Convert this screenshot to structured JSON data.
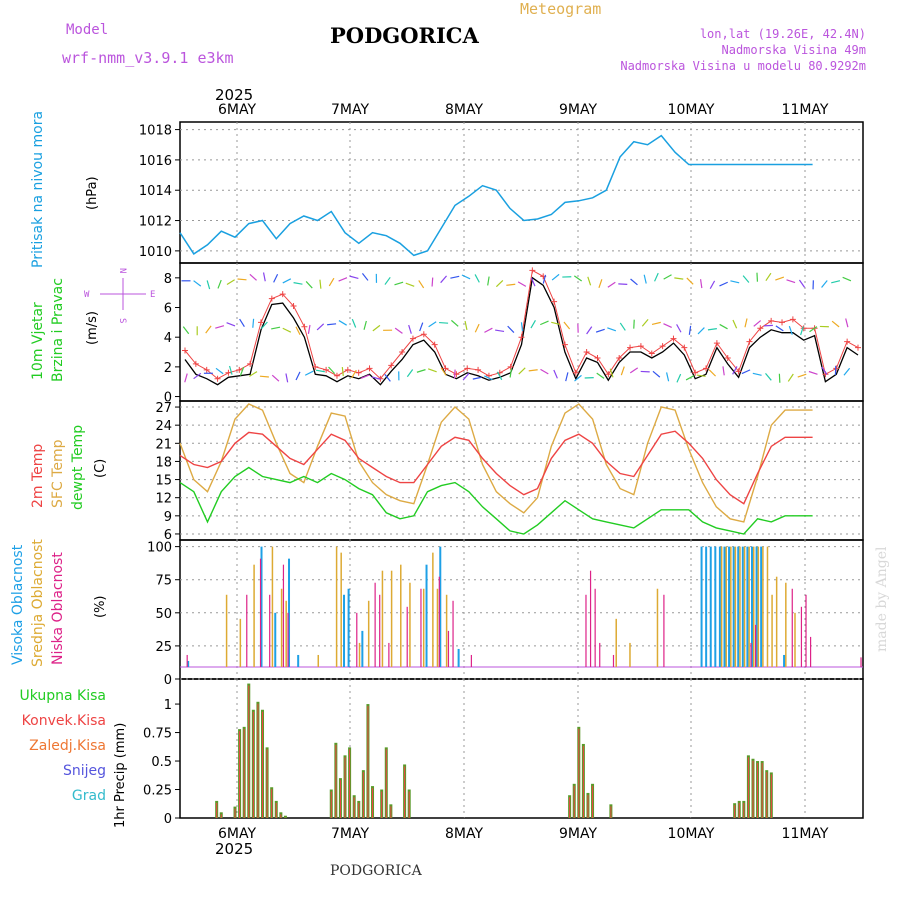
{
  "header": {
    "model_label": "Model",
    "model_name": "wrf-nmm_v3.9.1 e3km",
    "city": "PODGORICA",
    "meteogram": "Meteogram",
    "lonlat": "lon,lat (19.26E, 42.4N)",
    "elevation": "Nadmorska Visina 49m",
    "model_elevation": "Nadmorska Visina u modelu 80.9292m",
    "footer_city": "PODGORICA",
    "watermark": "made by Angel"
  },
  "colors": {
    "pressure": "#1aa0e0",
    "wind_label": "#22cc22",
    "temp2m": "#ee4444",
    "sfc": "#ddaa44",
    "dewpt": "#22cc22",
    "high_cloud": "#1ea0e6",
    "mid_cloud": "#ddaa33",
    "low_cloud": "#dd2288",
    "precip": "#5a9a2a",
    "label_purple": "#bb55dd"
  },
  "chart_data": [
    {
      "type": "line",
      "name": "pressure",
      "title_label": "Pritisak na nivou mora",
      "unit_label": "(hPa)",
      "x_start_year_label": "2025",
      "x_top_labels": [
        "6MAY",
        "7MAY",
        "8MAY",
        "9MAY",
        "10MAY",
        "11MAY"
      ],
      "x": [
        0,
        3,
        6,
        9,
        12,
        15,
        18,
        21,
        24,
        27,
        30,
        33,
        36,
        39,
        42,
        45,
        48,
        51,
        54,
        57,
        60,
        63,
        66,
        69,
        72,
        75,
        78,
        81,
        84,
        87,
        90,
        93,
        96,
        99,
        102,
        105,
        108,
        111,
        114,
        117,
        120,
        123,
        126,
        129,
        132,
        135,
        138,
        141,
        144
      ],
      "x_unit": "hours from 6MAY 00UTC minus 11",
      "yticks": [
        1010,
        1012,
        1014,
        1016,
        1018
      ],
      "ylim": [
        1009.2,
        1018.5
      ],
      "values": [
        1011.2,
        1009.8,
        1010.4,
        1011.3,
        1010.9,
        1011.8,
        1012.0,
        1010.8,
        1011.8,
        1012.3,
        1012.0,
        1012.6,
        1011.2,
        1010.5,
        1011.2,
        1011.0,
        1010.5,
        1009.7,
        1010.0,
        1011.5,
        1013.0,
        1013.6,
        1014.3,
        1014.0,
        1012.8,
        1012.0,
        1012.1,
        1012.4,
        1013.2,
        1013.3,
        1013.5,
        1014.0,
        1016.2,
        1017.2,
        1017.0,
        1017.6,
        1016.5,
        1015.7,
        1015.7,
        1015.7,
        1015.7,
        1015.7,
        1015.7,
        1015.7,
        1015.7,
        1015.7,
        1015.7,
        1015.7,
        1015.7
      ]
    },
    {
      "type": "line",
      "name": "wind",
      "title_label_1": "10m Vjetar",
      "title_label_2": "Brzina i Pravac",
      "unit_label": "(m/s)",
      "compass_n": "N",
      "compass_e": "E",
      "compass_w": "W",
      "compass_s": "S",
      "yticks": [
        0,
        2,
        4,
        6,
        8
      ],
      "ylim": [
        -0.3,
        9.0
      ],
      "speed": [
        2.5,
        1.5,
        1.2,
        0.8,
        1.3,
        1.4,
        1.5,
        4.5,
        6.2,
        6.3,
        5.3,
        4.0,
        1.5,
        1.4,
        1.0,
        1.4,
        1.2,
        1.5,
        0.8,
        1.7,
        2.5,
        3.5,
        3.8,
        3.0,
        1.5,
        1.2,
        1.6,
        1.4,
        1.1,
        1.3,
        1.6,
        3.5,
        8.0,
        7.5,
        6.0,
        3.0,
        1.2,
        2.6,
        2.3,
        1.1,
        2.3,
        3.0,
        3.0,
        2.6,
        3.0,
        3.6,
        2.8,
        1.2,
        1.5,
        3.3,
        2.2,
        1.3,
        3.3,
        4.0,
        4.5,
        4.3,
        4.3,
        3.8,
        4.1,
        1.0,
        1.5,
        3.3,
        2.8
      ],
      "gust": [
        3.1,
        2.2,
        1.8,
        1.2,
        1.6,
        1.8,
        2.2,
        5.0,
        6.6,
        6.9,
        6.1,
        4.7,
        2.0,
        1.8,
        1.4,
        1.8,
        1.6,
        1.9,
        1.2,
        2.1,
        3.0,
        3.9,
        4.2,
        3.5,
        1.9,
        1.5,
        1.9,
        1.8,
        1.4,
        1.6,
        2.0,
        4.0,
        8.5,
        8.1,
        6.4,
        3.5,
        1.6,
        3.0,
        2.6,
        1.5,
        2.6,
        3.3,
        3.4,
        2.9,
        3.4,
        3.9,
        3.3,
        1.6,
        1.9,
        3.6,
        2.6,
        1.7,
        3.7,
        4.6,
        5.1,
        5.0,
        5.2,
        4.6,
        4.6,
        1.5,
        1.9,
        3.7,
        3.3
      ]
    },
    {
      "type": "line",
      "name": "temperature",
      "label_2m": "2m Temp",
      "label_sfc": "SFC Temp",
      "label_dew": "dewpt Temp",
      "unit_label": "(C)",
      "yticks": [
        6,
        9,
        12,
        15,
        18,
        21,
        24,
        27
      ],
      "ylim": [
        5.0,
        28.0
      ],
      "x": [
        0,
        3,
        6,
        9,
        12,
        15,
        18,
        21,
        24,
        27,
        30,
        33,
        36,
        39,
        42,
        45,
        48,
        51,
        54,
        57,
        60,
        63,
        66,
        69,
        72,
        75,
        78,
        81,
        84,
        87,
        90,
        93,
        96,
        99,
        102,
        105,
        108,
        111,
        114,
        117,
        120,
        123,
        126,
        129,
        132,
        135,
        138,
        141,
        144
      ],
      "temp2m": [
        19.0,
        17.5,
        17.0,
        18.0,
        21.0,
        22.8,
        22.5,
        20.5,
        18.5,
        17.5,
        20.0,
        22.5,
        21.5,
        18.5,
        17.0,
        15.5,
        14.5,
        14.5,
        17.5,
        20.5,
        22.0,
        21.5,
        18.5,
        16.0,
        14.0,
        12.5,
        13.5,
        18.5,
        21.5,
        22.5,
        21.0,
        18.0,
        16.0,
        15.5,
        19.0,
        22.5,
        23.0,
        21.0,
        18.5,
        15.0,
        12.5,
        11.0,
        16.0,
        20.5,
        22.0,
        22.0,
        22.0,
        22.0,
        22.0
      ],
      "sfc": [
        21.0,
        15.0,
        13.0,
        18.0,
        25.0,
        27.5,
        26.5,
        21.0,
        16.0,
        14.5,
        20.5,
        26.0,
        25.5,
        18.0,
        14.5,
        12.5,
        11.5,
        11.0,
        17.5,
        24.5,
        27.0,
        25.0,
        17.5,
        13.0,
        11.0,
        9.5,
        12.0,
        20.5,
        26.0,
        27.5,
        25.0,
        17.5,
        13.5,
        12.5,
        21.0,
        27.0,
        26.5,
        20.0,
        14.5,
        10.5,
        8.5,
        8.0,
        15.5,
        24.0,
        26.5,
        26.5,
        26.5,
        26.5,
        26.5
      ],
      "dewpt": [
        14.5,
        13.0,
        8.0,
        13.0,
        15.5,
        17.0,
        15.5,
        15.0,
        14.5,
        15.5,
        14.5,
        16.0,
        15.0,
        13.5,
        12.5,
        9.5,
        8.5,
        9.0,
        13.0,
        14.0,
        14.5,
        13.0,
        10.5,
        8.5,
        6.5,
        6.0,
        7.5,
        9.5,
        11.5,
        10.0,
        8.5,
        8.0,
        7.5,
        7.0,
        8.5,
        10.0,
        10.0,
        10.0,
        8.0,
        7.0,
        6.5,
        6.0,
        8.5,
        8.0,
        9.0,
        9.0,
        9.0,
        9.0,
        9.0
      ]
    },
    {
      "type": "bar",
      "name": "clouds",
      "label_high": "Visoka Oblacnost",
      "label_mid": "Srednja Oblacnost",
      "label_low": "Niska Oblacnost",
      "unit_label": "(%)",
      "yticks": [
        0,
        25,
        50,
        75,
        100
      ],
      "ylim": [
        0,
        105
      ],
      "high": [
        [
          2,
          5
        ],
        [
          18,
          100
        ],
        [
          21,
          45
        ],
        [
          24,
          90
        ],
        [
          26,
          10
        ],
        [
          36,
          60
        ],
        [
          37,
          65
        ],
        [
          40,
          30
        ],
        [
          54,
          85
        ],
        [
          57,
          100
        ],
        [
          61,
          15
        ],
        [
          114,
          100
        ],
        [
          115,
          100
        ],
        [
          116,
          100
        ],
        [
          117,
          100
        ],
        [
          118,
          100
        ],
        [
          119,
          100
        ],
        [
          120,
          100
        ],
        [
          121,
          100
        ],
        [
          122,
          100
        ],
        [
          123,
          100
        ],
        [
          124,
          100
        ],
        [
          125,
          100
        ],
        [
          126,
          100
        ],
        [
          127,
          100
        ],
        [
          132,
          10
        ]
      ],
      "mid": [
        [
          10,
          60
        ],
        [
          13,
          40
        ],
        [
          16,
          85
        ],
        [
          20,
          100
        ],
        [
          22,
          65
        ],
        [
          23,
          55
        ],
        [
          30,
          10
        ],
        [
          34,
          100
        ],
        [
          35,
          95
        ],
        [
          39,
          20
        ],
        [
          41,
          55
        ],
        [
          44,
          80
        ],
        [
          46,
          80
        ],
        [
          48,
          85
        ],
        [
          50,
          70
        ],
        [
          53,
          65
        ],
        [
          55,
          95
        ],
        [
          56,
          65
        ],
        [
          58,
          60
        ],
        [
          95,
          40
        ],
        [
          98,
          20
        ],
        [
          104,
          65
        ],
        [
          118,
          100
        ],
        [
          119,
          100
        ],
        [
          120,
          100
        ],
        [
          121,
          100
        ],
        [
          122,
          100
        ],
        [
          123,
          100
        ],
        [
          124,
          100
        ],
        [
          125,
          100
        ],
        [
          126,
          100
        ],
        [
          127,
          100
        ],
        [
          128,
          100
        ],
        [
          129,
          60
        ],
        [
          130,
          75
        ],
        [
          132,
          70
        ],
        [
          134,
          45
        ]
      ],
      "low": [
        [
          1,
          10
        ],
        [
          14,
          60
        ],
        [
          17,
          90
        ],
        [
          19,
          60
        ],
        [
          22,
          85
        ],
        [
          23,
          45
        ],
        [
          38,
          45
        ],
        [
          42,
          70
        ],
        [
          43,
          60
        ],
        [
          45,
          20
        ],
        [
          49,
          50
        ],
        [
          52,
          65
        ],
        [
          56,
          75
        ],
        [
          58,
          30
        ],
        [
          59,
          55
        ],
        [
          63,
          10
        ],
        [
          88,
          60
        ],
        [
          89,
          80
        ],
        [
          90,
          65
        ],
        [
          91,
          20
        ],
        [
          94,
          10
        ],
        [
          105,
          60
        ],
        [
          124,
          20
        ],
        [
          125,
          35
        ],
        [
          133,
          65
        ],
        [
          135,
          50
        ],
        [
          136,
          60
        ],
        [
          137,
          25
        ],
        [
          148,
          8
        ]
      ]
    },
    {
      "type": "bar",
      "name": "precip",
      "label_total": "Ukupna Kisa",
      "label_conv": "Konvek.Kisa",
      "label_frozen": "Zaledj.Kisa",
      "label_snow": "Snijeg",
      "label_graupel": "Grad",
      "unit_label": "1hr Precip (mm)",
      "x_bottom_labels": [
        "6MAY",
        "7MAY",
        "8MAY",
        "9MAY",
        "10MAY",
        "11MAY"
      ],
      "x_end_year_label": "2025",
      "yticks": [
        0,
        0.25,
        0.5,
        0.75,
        1
      ],
      "ytick_labels": [
        "0",
        "0.25",
        "0.5",
        "0.75",
        "1"
      ],
      "ylim": [
        0,
        1.22
      ],
      "bars": [
        [
          8,
          0.15
        ],
        [
          9,
          0.05
        ],
        [
          12,
          0.1
        ],
        [
          13,
          0.78
        ],
        [
          14,
          0.8
        ],
        [
          15,
          1.18
        ],
        [
          16,
          0.95
        ],
        [
          17,
          1.02
        ],
        [
          18,
          0.95
        ],
        [
          19,
          0.62
        ],
        [
          20,
          0.27
        ],
        [
          21,
          0.15
        ],
        [
          22,
          0.05
        ],
        [
          23,
          0.02
        ],
        [
          33,
          0.25
        ],
        [
          34,
          0.66
        ],
        [
          35,
          0.35
        ],
        [
          36,
          0.55
        ],
        [
          37,
          0.62
        ],
        [
          38,
          0.2
        ],
        [
          39,
          0.15
        ],
        [
          40,
          0.42
        ],
        [
          41,
          1.0
        ],
        [
          42,
          0.28
        ],
        [
          44,
          0.25
        ],
        [
          45,
          0.62
        ],
        [
          46,
          0.12
        ],
        [
          49,
          0.47
        ],
        [
          50,
          0.25
        ],
        [
          85,
          0.2
        ],
        [
          86,
          0.3
        ],
        [
          87,
          0.8
        ],
        [
          88,
          0.65
        ],
        [
          89,
          0.22
        ],
        [
          90,
          0.3
        ],
        [
          94,
          0.12
        ],
        [
          121,
          0.13
        ],
        [
          122,
          0.15
        ],
        [
          123,
          0.15
        ],
        [
          124,
          0.55
        ],
        [
          125,
          0.52
        ],
        [
          126,
          0.5
        ],
        [
          127,
          0.5
        ],
        [
          128,
          0.42
        ],
        [
          129,
          0.4
        ]
      ]
    }
  ]
}
